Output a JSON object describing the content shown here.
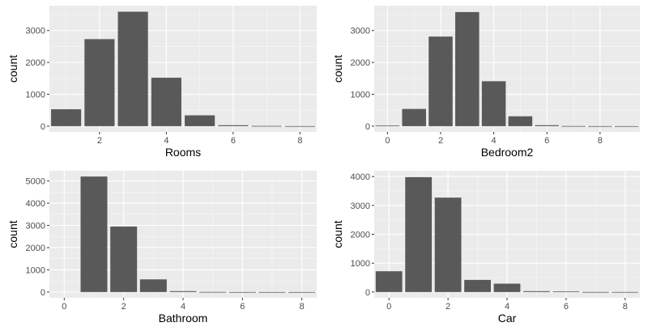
{
  "chart_data": [
    {
      "type": "bar",
      "title": "",
      "xlabel": "Rooms",
      "ylabel": "count",
      "xlim": [
        0.5,
        8.5
      ],
      "ylim": [
        0,
        3600
      ],
      "xticks": [
        2,
        4,
        6,
        8
      ],
      "yticks": [
        0,
        1000,
        2000,
        3000
      ],
      "x": [
        1,
        2,
        3,
        4,
        5,
        6,
        7,
        8
      ],
      "values": [
        530,
        2730,
        3590,
        1520,
        340,
        30,
        8,
        3
      ]
    },
    {
      "type": "bar",
      "title": "",
      "xlabel": "Bedroom2",
      "ylabel": "count",
      "xlim": [
        -0.5,
        9.5
      ],
      "ylim": [
        0,
        3600
      ],
      "xticks": [
        0,
        2,
        4,
        6,
        8
      ],
      "yticks": [
        0,
        1000,
        2000,
        3000
      ],
      "x": [
        0,
        1,
        2,
        3,
        4,
        5,
        6,
        7,
        8,
        9
      ],
      "values": [
        20,
        540,
        2810,
        3580,
        1410,
        310,
        30,
        5,
        3,
        2
      ]
    },
    {
      "type": "bar",
      "title": "",
      "xlabel": "Bathroom",
      "ylabel": "count",
      "xlim": [
        -0.5,
        8.5
      ],
      "ylim": [
        0,
        5200
      ],
      "xticks": [
        0,
        2,
        4,
        6,
        8
      ],
      "yticks": [
        0,
        1000,
        2000,
        3000,
        4000,
        5000
      ],
      "x": [
        0,
        1,
        2,
        3,
        4,
        5,
        6,
        7,
        8
      ],
      "values": [
        0,
        5200,
        2950,
        570,
        40,
        5,
        2,
        1,
        1
      ]
    },
    {
      "type": "bar",
      "title": "",
      "xlabel": "Car",
      "ylabel": "count",
      "xlim": [
        -0.5,
        8.5
      ],
      "ylim": [
        0,
        4000
      ],
      "xticks": [
        0,
        2,
        4,
        6,
        8
      ],
      "yticks": [
        0,
        1000,
        2000,
        3000,
        4000
      ],
      "x": [
        0,
        1,
        2,
        3,
        4,
        5,
        6,
        7,
        8
      ],
      "values": [
        720,
        3980,
        3270,
        420,
        290,
        30,
        20,
        3,
        2
      ]
    }
  ]
}
